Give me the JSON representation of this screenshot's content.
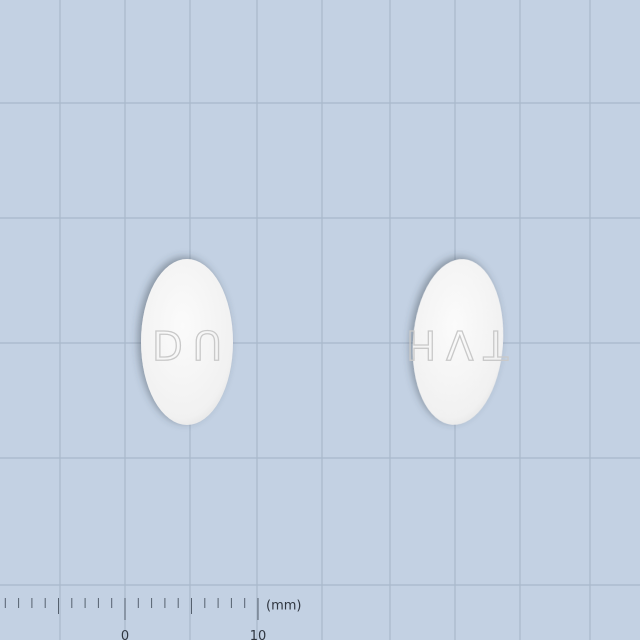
{
  "scale": {
    "unit": "(mm)",
    "labels": [
      "0",
      "10"
    ]
  },
  "tablets": [
    {
      "imprint": "DU"
    },
    {
      "imprint": "HVT"
    }
  ]
}
